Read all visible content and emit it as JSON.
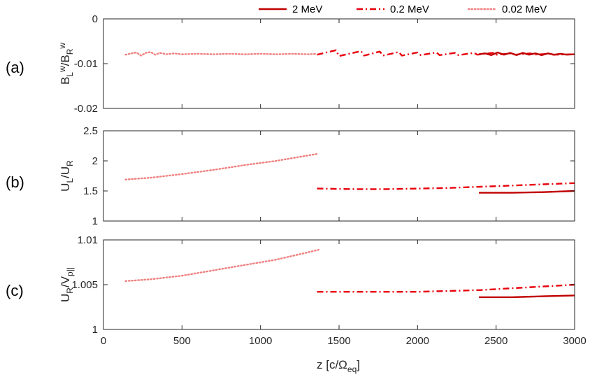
{
  "chart_data": {
    "type": "line",
    "legend": {
      "placement": "top-right",
      "entries": [
        {
          "label": "2 MeV",
          "style": "solid",
          "color": "#c00000"
        },
        {
          "label": "0.2 MeV",
          "style": "dashdot",
          "color": "#e8000b"
        },
        {
          "label": "0.02 MeV",
          "style": "dotted",
          "color": "#f08080"
        }
      ]
    },
    "xlabel": "z [c/Ω_eq]",
    "xlim": [
      0,
      3000
    ],
    "xticks": [
      "0",
      "500",
      "1000",
      "1500",
      "2000",
      "2500",
      "3000"
    ],
    "panels": [
      {
        "panel_label": "(a)",
        "ylabel": "B_L^w/B_R^w",
        "ylim": [
          -0.02,
          0
        ],
        "yticks": [
          "-0.02",
          "-0.01",
          "0"
        ],
        "series": [
          {
            "style": "dotted",
            "color": "#f08080",
            "x": [
              140,
              180,
              210,
              240,
              270,
              300,
              330,
              360,
              400,
              450,
              500,
              600,
              700,
              800,
              900,
              1000,
              1100,
              1200,
              1300,
              1360
            ],
            "y": [
              -0.008,
              -0.0077,
              -0.0075,
              -0.0082,
              -0.0076,
              -0.0074,
              -0.008,
              -0.0076,
              -0.0079,
              -0.0077,
              -0.0079,
              -0.0078,
              -0.0079,
              -0.0078,
              -0.0079,
              -0.0078,
              -0.0079,
              -0.0078,
              -0.0079,
              -0.0078
            ]
          },
          {
            "style": "dashdot",
            "color": "#e8000b",
            "x": [
              1360,
              1480,
              1500,
              1640,
              1660,
              1760,
              1780,
              1880,
              1900,
              2000,
              2020,
              2120,
              2140,
              2240,
              2260,
              2360,
              2380,
              2480,
              2500,
              2600,
              2620,
              2720,
              2740,
              2840,
              2860,
              3000
            ],
            "y": [
              -0.008,
              -0.007,
              -0.0083,
              -0.0072,
              -0.0082,
              -0.0073,
              -0.0082,
              -0.0074,
              -0.0082,
              -0.0075,
              -0.0081,
              -0.0075,
              -0.0081,
              -0.0076,
              -0.0081,
              -0.0076,
              -0.008,
              -0.0076,
              -0.008,
              -0.0077,
              -0.008,
              -0.0077,
              -0.008,
              -0.0078,
              -0.008,
              -0.0079
            ]
          },
          {
            "style": "solid",
            "color": "#c00000",
            "x": [
              2390,
              2430,
              2470,
              2510,
              2550,
              2590,
              2630,
              2670,
              2710,
              2750,
              2790,
              2830,
              2870,
              2910,
              2950,
              3000
            ],
            "y": [
              -0.0079,
              -0.0077,
              -0.0081,
              -0.0075,
              -0.008,
              -0.0076,
              -0.0081,
              -0.0076,
              -0.008,
              -0.0077,
              -0.0081,
              -0.0077,
              -0.008,
              -0.0078,
              -0.008,
              -0.0079
            ]
          }
        ]
      },
      {
        "panel_label": "(b)",
        "ylabel": "U_L/U_R",
        "ylim": [
          1,
          2.5
        ],
        "yticks": [
          "1",
          "1.5",
          "2",
          "2.5"
        ],
        "series": [
          {
            "style": "dotted",
            "color": "#f08080",
            "x": [
              140,
              300,
              500,
              700,
              900,
              1100,
              1300,
              1370
            ],
            "y": [
              1.69,
              1.72,
              1.78,
              1.85,
              1.93,
              2.0,
              2.09,
              2.12
            ]
          },
          {
            "style": "dashdot",
            "color": "#e8000b",
            "x": [
              1360,
              1600,
              1800,
              2000,
              2200,
              2400,
              2600,
              2800,
              3000
            ],
            "y": [
              1.54,
              1.53,
              1.53,
              1.54,
              1.55,
              1.57,
              1.59,
              1.61,
              1.63
            ]
          },
          {
            "style": "solid",
            "color": "#c00000",
            "x": [
              2390,
              2600,
              2800,
              3000
            ],
            "y": [
              1.47,
              1.47,
              1.48,
              1.5
            ]
          }
        ]
      },
      {
        "panel_label": "(c)",
        "ylabel": "U_R/V_p||",
        "ylim": [
          1,
          1.01
        ],
        "yticks": [
          "1",
          "1.005",
          "1.01"
        ],
        "series": [
          {
            "style": "dotted",
            "color": "#f08080",
            "x": [
              140,
              300,
              500,
              700,
              900,
              1100,
              1300,
              1370
            ],
            "y": [
              1.0054,
              1.0056,
              1.006,
              1.0066,
              1.0072,
              1.0078,
              1.0086,
              1.0089
            ]
          },
          {
            "style": "dashdot",
            "color": "#e8000b",
            "x": [
              1360,
              1600,
              1800,
              2000,
              2200,
              2400,
              2600,
              2800,
              3000
            ],
            "y": [
              1.0042,
              1.0042,
              1.0042,
              1.0042,
              1.0043,
              1.0044,
              1.0046,
              1.0048,
              1.005
            ]
          },
          {
            "style": "solid",
            "color": "#c00000",
            "x": [
              2390,
              2600,
              2800,
              3000
            ],
            "y": [
              1.0036,
              1.0036,
              1.0037,
              1.0038
            ]
          }
        ]
      }
    ]
  }
}
